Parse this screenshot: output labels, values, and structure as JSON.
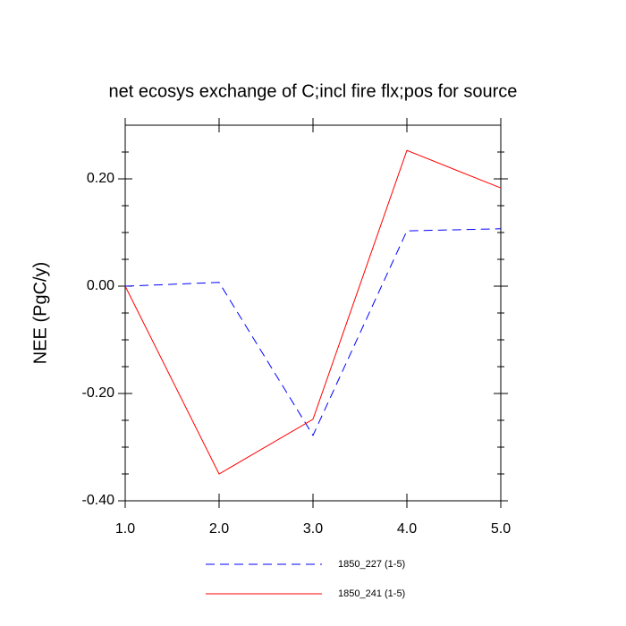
{
  "chart_data": {
    "type": "line",
    "title": "net ecosys exchange of C;incl fire flx;pos for source",
    "y_label": "NEE  (PgC/y)",
    "x": [
      1,
      2,
      3,
      4,
      5
    ],
    "series": [
      {
        "name": "1850_227 (1-5)",
        "color": "#0000ff",
        "dash": "dashed",
        "values": [
          0.0,
          0.007,
          -0.278,
          0.103,
          0.107
        ]
      },
      {
        "name": "1850_241 (1-5)",
        "color": "#ff0000",
        "dash": "solid",
        "values": [
          0.0,
          -0.35,
          -0.248,
          0.253,
          0.183
        ]
      }
    ],
    "xlim": [
      1,
      5
    ],
    "xticks": [
      {
        "value": 1,
        "label": "1.0"
      },
      {
        "value": 2,
        "label": "2.0"
      },
      {
        "value": 3,
        "label": "3.0"
      },
      {
        "value": 4,
        "label": "4.0"
      },
      {
        "value": 5,
        "label": "5.0"
      }
    ],
    "ylim": [
      -0.4,
      0.3
    ],
    "yticks": [
      {
        "value": -0.4,
        "label": "-0.40"
      },
      {
        "value": -0.2,
        "label": "-0.20"
      },
      {
        "value": 0,
        "label": "0.00"
      },
      {
        "value": 0.2,
        "label": "0.20"
      }
    ],
    "yminorticks": [
      -0.35,
      -0.3,
      -0.25,
      -0.15,
      -0.1,
      -0.05,
      0.05,
      0.1,
      0.15,
      0.25
    ],
    "legend": "bottom"
  }
}
